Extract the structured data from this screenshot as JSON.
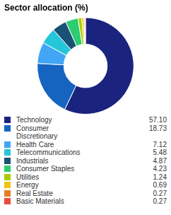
{
  "chart_data": {
    "type": "doughnut",
    "title": "Sector allocation (%)",
    "categories": [
      "Technology",
      "Consumer\nDiscretionary",
      "Health Care",
      "Telecommunications",
      "Industrials",
      "Consumer Staples",
      "Utilities",
      "Energy",
      "Real Estate",
      "Basic Materials"
    ],
    "values": [
      57.1,
      18.73,
      7.12,
      5.48,
      4.87,
      4.23,
      1.24,
      0.69,
      0.27,
      0.27
    ],
    "value_labels": [
      "57.10",
      "18.73",
      "7.12",
      "5.48",
      "4.87",
      "4.23",
      "1.24",
      "0.69",
      "0.27",
      "0.27"
    ],
    "colors": [
      "#1a237e",
      "#1565c0",
      "#42a5f5",
      "#26c6da",
      "#1a5276",
      "#2ecc71",
      "#aacc00",
      "#f1c40f",
      "#e67e22",
      "#e74c3c"
    ],
    "legend": "bottom"
  }
}
